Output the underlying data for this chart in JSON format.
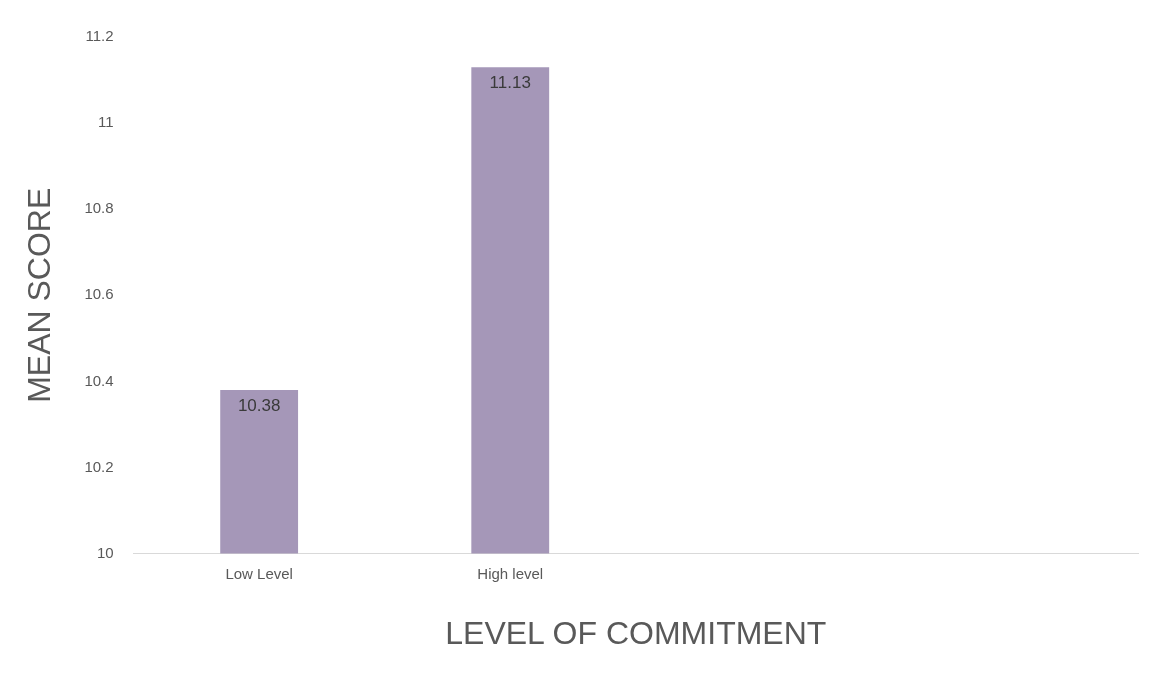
{
  "chart_data": {
    "type": "bar",
    "xlabel": "LEVEL OF COMMITMENT",
    "ylabel": "MEAN SCORE",
    "categories": [
      "Low Level",
      "High level",
      null,
      null
    ],
    "values": [
      10.38,
      11.13,
      null,
      null
    ],
    "color": "#a597b8",
    "ylim": [
      10,
      11.2
    ],
    "yticks": [
      10,
      10.2,
      10.4,
      10.6,
      10.8,
      11,
      11.2
    ],
    "grid": false,
    "legend": false,
    "data_labels": true
  }
}
